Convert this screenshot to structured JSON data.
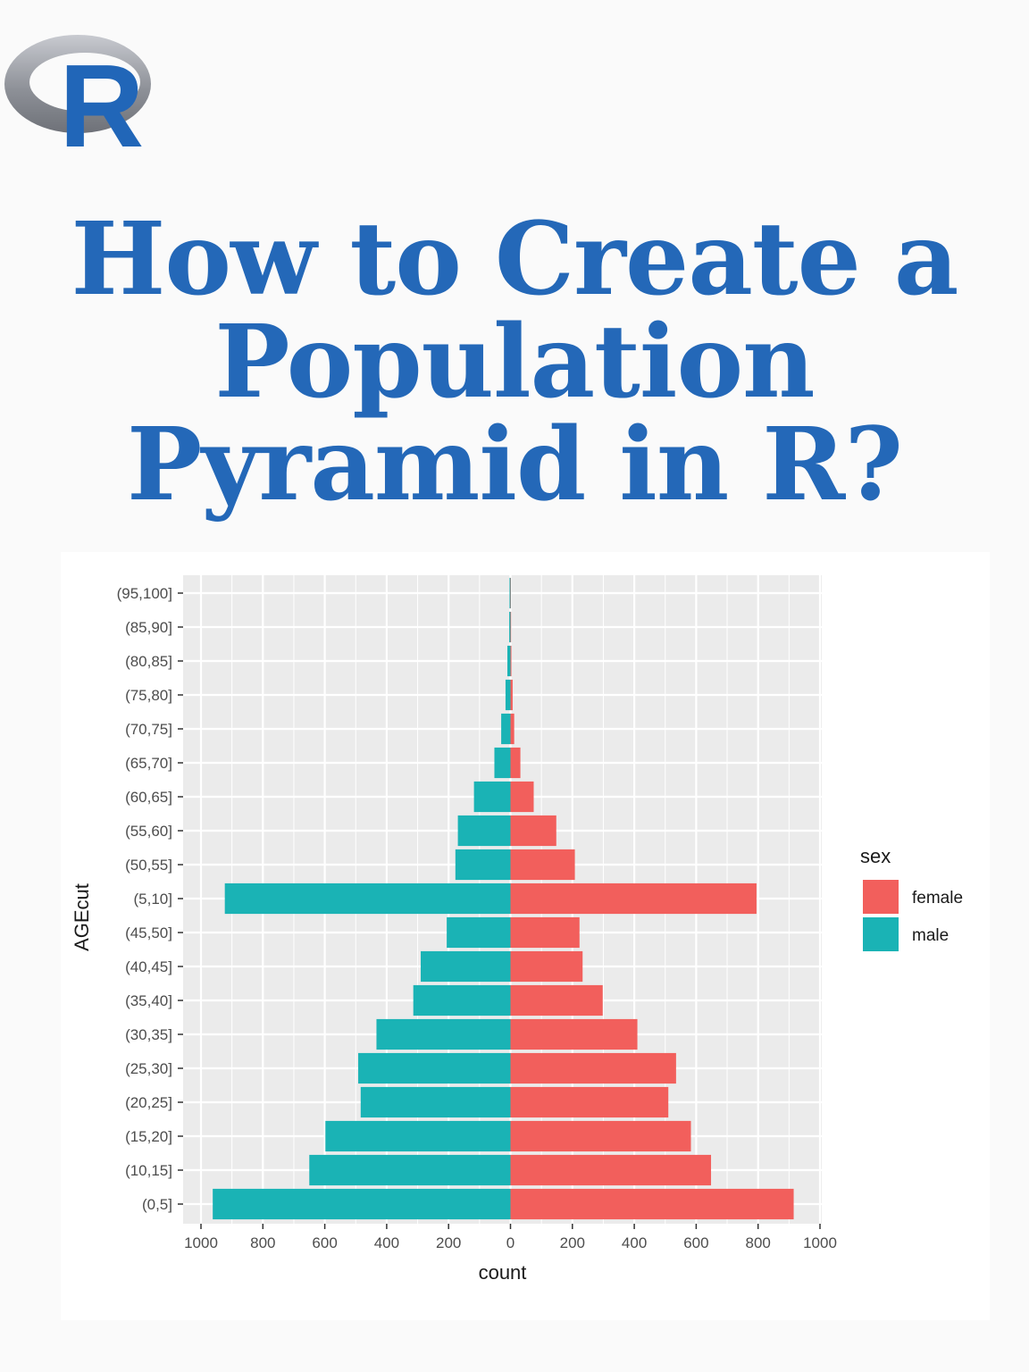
{
  "title": {
    "lines": [
      "How to Create a",
      "Population",
      "Pyramid in R?"
    ]
  },
  "logo": {
    "letter": "R"
  },
  "colors": {
    "title": "#2468b8",
    "female": "#f25f5c",
    "male": "#1ab3b5",
    "panel": "#ebebeb",
    "grid": "#ffffff",
    "logo_ring": "#9a9ca3",
    "logo_letter": "#2166b8"
  },
  "chart_data": {
    "type": "bar",
    "orientation": "horizontal",
    "categories": [
      "(0,5]",
      "(10,15]",
      "(15,20]",
      "(20,25]",
      "(25,30]",
      "(30,35]",
      "(35,40]",
      "(40,45]",
      "(45,50]",
      "(5,10]",
      "(50,55]",
      "(55,60]",
      "(60,65]",
      "(65,70]",
      "(70,75]",
      "(75,80]",
      "(80,85]",
      "(85,90]",
      "(95,100]"
    ],
    "series": [
      {
        "name": "female",
        "values": [
          915,
          648,
          583,
          510,
          535,
          410,
          298,
          233,
          223,
          795,
          208,
          148,
          75,
          32,
          12,
          7,
          3,
          2,
          1
        ]
      },
      {
        "name": "male",
        "values": [
          962,
          650,
          598,
          484,
          492,
          433,
          314,
          290,
          206,
          923,
          178,
          170,
          118,
          52,
          30,
          16,
          10,
          4,
          3
        ]
      }
    ],
    "x_ticks": [
      "1000",
      "800",
      "600",
      "400",
      "200",
      "0",
      "200",
      "400",
      "600",
      "800",
      "1000"
    ],
    "xlabel": "count",
    "ylabel": "AGEcut",
    "xlim": [
      -1000,
      1000
    ],
    "legend_title": "sex",
    "legend_position": "right",
    "grid": true
  }
}
